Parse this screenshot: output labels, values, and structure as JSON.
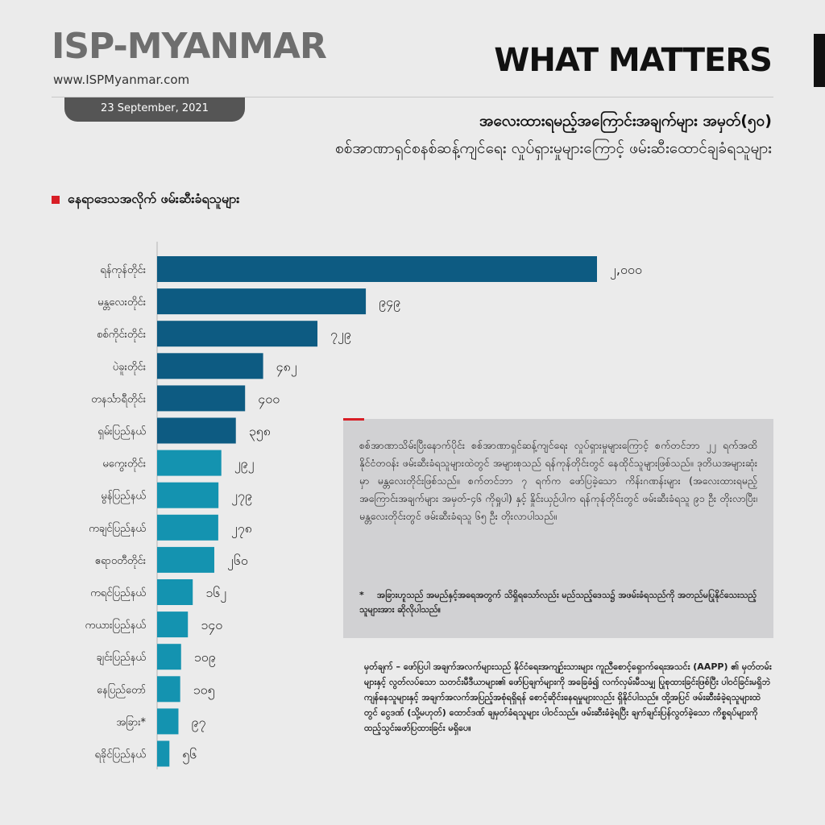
{
  "header": {
    "logo": "ISP-MYANMAR",
    "site": "www.ISPMyanmar.com",
    "date": "23 September, 2021",
    "what_matters": "WHAT MATTERS",
    "title_line1": "အလေးထားရမည့်အကြောင်းအချက်များ အမှတ်(၅၀)",
    "title_line2": "စစ်အာဏာရှင်စနစ်ဆန့်ကျင်ရေး လှုပ်ရှားမှုများကြောင့် ဖမ်းဆီးထောင်ချခံရသူများ"
  },
  "subheading": "နေရာဒေသအလိုက် ဖမ်းဆီးခံရသူများ",
  "note": {
    "paragraph": "စစ်အာဏာသိမ်းပြီးနောက်ပိုင်း စစ်အာဏာရှင်ဆန့်ကျင်ရေး လှုပ်ရှားမှုများကြောင့် စက်တင်ဘာ ၂၂ ရက်အထိ နိုင်ငံတဝန်း ဖမ်းဆီးခံရသူများထဲတွင် အများစုသည် ရန်ကုန်တိုင်းတွင် နေထိုင်သူများဖြစ်သည်။ ဒုတိယအများဆုံးမှာ မန္တလေးတိုင်းဖြစ်သည်။ စက်တင်ဘာ ၇ ရက်က ဖော်ပြခဲ့သော ကိန်းဂဏန်းများ (အလေးထားရမည့် အကြောင်းအချက်များ အမှတ်-၄၆ ကိုရှုပါ) နှင့် နှိုင်းယှဉ်ပါက ရန်ကုန်တိုင်းတွင် ဖမ်းဆီးခံရသူ ၉၁ ဦး တိုးလာပြီး၊ မန္တလေးတိုင်းတွင် ဖမ်းဆီးခံရသူ ၆၅ ဦး တိုးလာပါသည်။",
    "star": "*",
    "star_text": "အခြားဟူသည် အမည်နှင့်အရေအတွက် သိရှိရသော်လည်း မည်သည့်ဒေသ၌ အဖမ်းခံရသည်ကို အတည်မပြုနိုင်သေးသည့်သူများအား ဆိုလိုပါသည်။"
  },
  "footnote": {
    "label": "မှတ်ချက် –",
    "text": "ဖော်ပြပါ အချက်အလက်များသည် နိုင်ငံရေးအကျဉ်းသားများ ကူညီစောင့်ရှောက်ရေးအသင်း (AAPP) ၏ မှတ်တမ်းများနှင့် လွတ်လပ်သော သတင်းမီဒီယာများ၏ ဖော်ပြချက်များကို အခြေခံ၍ လက်လှမ်းမီသမျှ ပြုစုထားခြင်းဖြစ်ပြီး ပါဝင်ခြင်းမရှိဘဲ ကျန်နေသူများနှင့် အချက်အလက်အပြည့်အစုံရရှိရန် စောင့်ဆိုင်းနေရမှုများလည်း ရှိနိုင်ပါသည်။ ထို့အပြင် ဖမ်းဆီးခံခဲ့ရသူများထဲတွင် ငွေဒဏ် (သို့မဟုတ်) ထောင်ဒဏ် ချမှတ်ခံရသူများ ပါဝင်သည်။ ဖမ်းဆီးခံခဲ့ရပြီး ချက်ချင်းပြန်လွတ်ခဲ့သော ကိစ္စရပ်များကို ထည့်သွင်းဖော်ပြထားခြင်း မရှိပေ။"
  },
  "colors": {
    "dark_bar": "#0d5b82",
    "light_bar": "#1493b0",
    "accent": "#d81e26"
  },
  "chart_data": {
    "type": "bar",
    "orientation": "horizontal",
    "categories": [
      "ရန်ကုန်တိုင်း",
      "မန္တလေးတိုင်း",
      "စစ်ကိုင်းတိုင်း",
      "ပဲခူးတိုင်း",
      "တနင်္သာရီတိုင်း",
      "ရှမ်းပြည်နယ်",
      "မကွေးတိုင်း",
      "မွန်ပြည်နယ်",
      "ကချင်ပြည်နယ်",
      "ဧရာဝတီတိုင်း",
      "ကရင်ပြည်နယ်",
      "ကယားပြည်နယ်",
      "ချင်းပြည်နယ်",
      "နေပြည်တော်",
      "အခြား*",
      "ရခိုင်ပြည်နယ်"
    ],
    "values": [
      2000,
      949,
      729,
      482,
      400,
      358,
      292,
      279,
      278,
      260,
      162,
      140,
      109,
      105,
      97,
      56
    ],
    "value_labels": [
      "၂,၀၀၀",
      "၉၄၉",
      "၇၂၉",
      "၄၈၂",
      "၄၀၀",
      "၃၅၈",
      "၂၉၂",
      "၂၇၉",
      "၂၇၈",
      "၂၆၀",
      "၁၆၂",
      "၁၄၀",
      "၁၀၉",
      "၁၀၅",
      "၉၇",
      "၅၆"
    ],
    "color_group": [
      "dark",
      "dark",
      "dark",
      "dark",
      "dark",
      "dark",
      "light",
      "light",
      "light",
      "light",
      "light",
      "light",
      "light",
      "light",
      "light",
      "light"
    ],
    "xlim": [
      0,
      2000
    ],
    "grid": false
  }
}
